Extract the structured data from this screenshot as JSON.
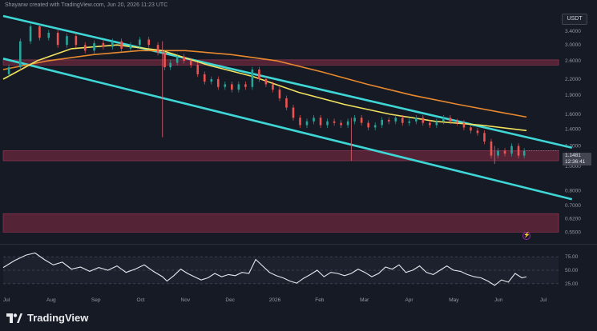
{
  "header": {
    "attribution": "Shayanw created with TradingView.com, Jun 20, 2026 11:23 UTC"
  },
  "currency": "USDT",
  "last_price": {
    "value": "1.1481",
    "countdown": "12:36:41"
  },
  "brand": {
    "name": "TradingView"
  },
  "alert_icon": "⚡",
  "chart_data": {
    "type": "candlestick",
    "x_ticks": [
      "Jul",
      "Aug",
      "Sep",
      "Oct",
      "Nov",
      "Dec",
      "2026",
      "Feb",
      "Mar",
      "Apr",
      "May",
      "Jun",
      "Jul"
    ],
    "y_ticks": [
      "3.4000",
      "3.0000",
      "2.6000",
      "2.2000",
      "1.9000",
      "1.6000",
      "1.4000",
      "1.2000",
      "1.0000",
      "0.8000",
      "0.7000",
      "0.6200",
      "0.5500"
    ],
    "ylim": [
      0.52,
      3.9
    ],
    "y_scale": "log",
    "last_price": 1.1481,
    "price_path": [
      [
        0,
        2.3
      ],
      [
        5,
        2.45
      ],
      [
        10,
        3.1
      ],
      [
        14,
        3.55
      ],
      [
        18,
        3.2
      ],
      [
        22,
        3.35
      ],
      [
        26,
        3.0
      ],
      [
        30,
        3.25
      ],
      [
        34,
        3.0
      ],
      [
        38,
        2.85
      ],
      [
        42,
        3.05
      ],
      [
        46,
        2.95
      ],
      [
        50,
        3.1
      ],
      [
        54,
        2.9
      ],
      [
        58,
        3.0
      ],
      [
        62,
        3.15
      ],
      [
        66,
        3.0
      ],
      [
        70,
        2.8
      ],
      [
        72,
        2.45
      ],
      [
        75,
        2.55
      ],
      [
        78,
        2.7
      ],
      [
        81,
        2.6
      ],
      [
        84,
        2.5
      ],
      [
        87,
        2.3
      ],
      [
        90,
        2.15
      ],
      [
        93,
        2.2
      ],
      [
        96,
        2.05
      ],
      [
        99,
        2.1
      ],
      [
        102,
        2.0
      ],
      [
        105,
        2.1
      ],
      [
        108,
        2.05
      ],
      [
        111,
        2.4
      ],
      [
        114,
        2.2
      ],
      [
        117,
        2.1
      ],
      [
        120,
        2.0
      ],
      [
        123,
        1.85
      ],
      [
        126,
        1.7
      ],
      [
        129,
        1.55
      ],
      [
        132,
        1.45
      ],
      [
        135,
        1.5
      ],
      [
        138,
        1.55
      ],
      [
        141,
        1.45
      ],
      [
        144,
        1.5
      ],
      [
        147,
        1.48
      ],
      [
        150,
        1.45
      ],
      [
        153,
        1.5
      ],
      [
        156,
        1.55
      ],
      [
        159,
        1.48
      ],
      [
        162,
        1.42
      ],
      [
        165,
        1.45
      ],
      [
        168,
        1.52
      ],
      [
        171,
        1.5
      ],
      [
        174,
        1.55
      ],
      [
        177,
        1.48
      ],
      [
        180,
        1.5
      ],
      [
        183,
        1.55
      ],
      [
        186,
        1.48
      ],
      [
        189,
        1.45
      ],
      [
        192,
        1.5
      ],
      [
        195,
        1.55
      ],
      [
        198,
        1.5
      ],
      [
        201,
        1.48
      ],
      [
        204,
        1.42
      ],
      [
        207,
        1.38
      ],
      [
        210,
        1.35
      ],
      [
        213,
        1.25
      ],
      [
        216,
        1.1
      ],
      [
        219,
        1.15
      ],
      [
        222,
        1.12
      ],
      [
        225,
        1.2
      ],
      [
        228,
        1.1
      ],
      [
        230,
        1.1481
      ]
    ],
    "wicks": [
      {
        "t": 70,
        "low": 1.3,
        "high": 3.1
      },
      {
        "t": 153,
        "low": 1.05,
        "high": 1.55
      },
      {
        "t": 216,
        "low": 1.02,
        "high": 1.2
      }
    ],
    "ma_short": [
      [
        0,
        2.2
      ],
      [
        15,
        2.6
      ],
      [
        30,
        2.9
      ],
      [
        50,
        3.0
      ],
      [
        70,
        2.85
      ],
      [
        90,
        2.5
      ],
      [
        110,
        2.25
      ],
      [
        130,
        1.95
      ],
      [
        150,
        1.75
      ],
      [
        170,
        1.6
      ],
      [
        190,
        1.5
      ],
      [
        210,
        1.45
      ],
      [
        230,
        1.38
      ]
    ],
    "ma_long": [
      [
        0,
        2.4
      ],
      [
        20,
        2.6
      ],
      [
        40,
        2.75
      ],
      [
        60,
        2.85
      ],
      [
        80,
        2.85
      ],
      [
        100,
        2.75
      ],
      [
        120,
        2.6
      ],
      [
        140,
        2.35
      ],
      [
        160,
        2.1
      ],
      [
        180,
        1.9
      ],
      [
        200,
        1.75
      ],
      [
        220,
        1.62
      ],
      [
        230,
        1.56
      ]
    ],
    "channel_upper": [
      [
        0,
        3.9
      ],
      [
        230,
        1.3
      ]
    ],
    "channel_lower": [
      [
        0,
        2.65
      ],
      [
        230,
        0.82
      ]
    ],
    "zones": [
      {
        "from": 2.5,
        "to": 2.62
      },
      {
        "from": 1.05,
        "to": 1.15
      },
      {
        "from": 0.55,
        "to": 0.65
      }
    ],
    "rsi": {
      "y_ticks": [
        "75.00",
        "50.00",
        "25.00"
      ],
      "ylim": [
        10,
        90
      ],
      "values": [
        [
          0,
          55
        ],
        [
          5,
          68
        ],
        [
          10,
          78
        ],
        [
          14,
          82
        ],
        [
          18,
          70
        ],
        [
          22,
          60
        ],
        [
          26,
          65
        ],
        [
          30,
          52
        ],
        [
          34,
          56
        ],
        [
          38,
          48
        ],
        [
          42,
          55
        ],
        [
          46,
          50
        ],
        [
          50,
          58
        ],
        [
          54,
          46
        ],
        [
          58,
          52
        ],
        [
          62,
          60
        ],
        [
          66,
          48
        ],
        [
          70,
          38
        ],
        [
          72,
          30
        ],
        [
          75,
          40
        ],
        [
          78,
          52
        ],
        [
          81,
          44
        ],
        [
          84,
          38
        ],
        [
          87,
          32
        ],
        [
          90,
          36
        ],
        [
          93,
          44
        ],
        [
          96,
          38
        ],
        [
          99,
          42
        ],
        [
          102,
          40
        ],
        [
          105,
          46
        ],
        [
          108,
          44
        ],
        [
          111,
          70
        ],
        [
          114,
          58
        ],
        [
          117,
          46
        ],
        [
          120,
          40
        ],
        [
          123,
          36
        ],
        [
          126,
          30
        ],
        [
          129,
          26
        ],
        [
          132,
          35
        ],
        [
          135,
          42
        ],
        [
          138,
          50
        ],
        [
          141,
          38
        ],
        [
          144,
          46
        ],
        [
          147,
          44
        ],
        [
          150,
          40
        ],
        [
          153,
          44
        ],
        [
          156,
          52
        ],
        [
          159,
          46
        ],
        [
          162,
          38
        ],
        [
          165,
          44
        ],
        [
          168,
          56
        ],
        [
          171,
          52
        ],
        [
          174,
          60
        ],
        [
          177,
          46
        ],
        [
          180,
          50
        ],
        [
          183,
          58
        ],
        [
          186,
          46
        ],
        [
          189,
          42
        ],
        [
          192,
          50
        ],
        [
          195,
          58
        ],
        [
          198,
          50
        ],
        [
          201,
          48
        ],
        [
          204,
          42
        ],
        [
          207,
          38
        ],
        [
          210,
          36
        ],
        [
          213,
          30
        ],
        [
          216,
          22
        ],
        [
          219,
          32
        ],
        [
          222,
          28
        ],
        [
          225,
          44
        ],
        [
          228,
          36
        ],
        [
          230,
          38
        ]
      ]
    }
  }
}
